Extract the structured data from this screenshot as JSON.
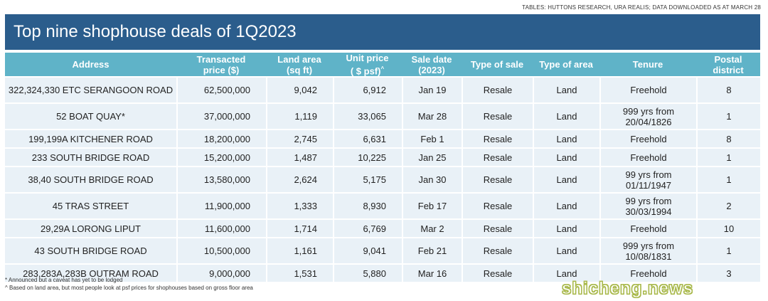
{
  "source": "TABLES: HUTTONS RESEARCH, URA REALIS; DATA DOWNLOADED AS AT MARCH 28",
  "title": "Top nine shophouse deals of 1Q2023",
  "headers": {
    "address": "Address",
    "price_1": "Transacted",
    "price_2": "price ($)",
    "land_1": "Land area",
    "land_2": "(sq ft)",
    "unit_1": "Unit price",
    "unit_2": "( $ psf)",
    "unit_mark": "^",
    "date_1": "Sale date",
    "date_2": "(2023)",
    "type_sale": "Type of sale",
    "type_area": "Type of area",
    "tenure": "Tenure",
    "postal_1": "Postal",
    "postal_2": "district"
  },
  "rows": [
    {
      "address": "322,324,330 ETC SERANGOON ROAD",
      "price": "62,500,000",
      "land": "9,042",
      "unit": "6,912",
      "date": "Jan 19",
      "sale": "Resale",
      "area": "Land",
      "tenure": "Freehold",
      "district": "8"
    },
    {
      "address": "52 BOAT QUAY*",
      "price": "37,000,000",
      "land": "1,119",
      "unit": "33,065",
      "date": "Mar 28",
      "sale": "Resale",
      "area": "Land",
      "tenure": "999 yrs from 20/04/1826",
      "district": "1"
    },
    {
      "address": "199,199A KITCHENER ROAD",
      "price": "18,200,000",
      "land": "2,745",
      "unit": "6,631",
      "date": "Feb 1",
      "sale": "Resale",
      "area": "Land",
      "tenure": "Freehold",
      "district": "8"
    },
    {
      "address": "233 SOUTH BRIDGE ROAD",
      "price": "15,200,000",
      "land": "1,487",
      "unit": "10,225",
      "date": "Jan 25",
      "sale": "Resale",
      "area": "Land",
      "tenure": "Freehold",
      "district": "1"
    },
    {
      "address": "38,40 SOUTH BRIDGE ROAD",
      "price": "13,580,000",
      "land": "2,624",
      "unit": "5,175",
      "date": "Jan 30",
      "sale": "Resale",
      "area": "Land",
      "tenure": "99 yrs from 01/11/1947",
      "district": "1"
    },
    {
      "address": "45 TRAS STREET",
      "price": "11,900,000",
      "land": "1,333",
      "unit": "8,930",
      "date": "Feb 17",
      "sale": "Resale",
      "area": "Land",
      "tenure": "99 yrs from 30/03/1994",
      "district": "2"
    },
    {
      "address": "29,29A LORONG LIPUT",
      "price": "11,600,000",
      "land": "1,714",
      "unit": "6,769",
      "date": "Mar 2",
      "sale": "Resale",
      "area": "Land",
      "tenure": "Freehold",
      "district": "10"
    },
    {
      "address": "43 SOUTH BRIDGE ROAD",
      "price": "10,500,000",
      "land": "1,161",
      "unit": "9,041",
      "date": "Feb 21",
      "sale": "Resale",
      "area": "Land",
      "tenure": "999 yrs from 10/08/1831",
      "district": "1"
    },
    {
      "address": "283,283A,283B OUTRAM ROAD",
      "price": "9,000,000",
      "land": "1,531",
      "unit": "5,880",
      "date": "Mar 16",
      "sale": "Resale",
      "area": "Land",
      "tenure": "Freehold",
      "district": "3"
    }
  ],
  "footnotes": [
    "* Announced but a caveat has yet to be lodged",
    "^ Based on land area, but most people look at psf prices for shophouses based on gross floor area"
  ],
  "watermark": "shicheng.news",
  "colors": {
    "title_bg": "#2b5d8c",
    "header_bg": "#5fb3c8",
    "row_bg": "#e9f1f7"
  }
}
